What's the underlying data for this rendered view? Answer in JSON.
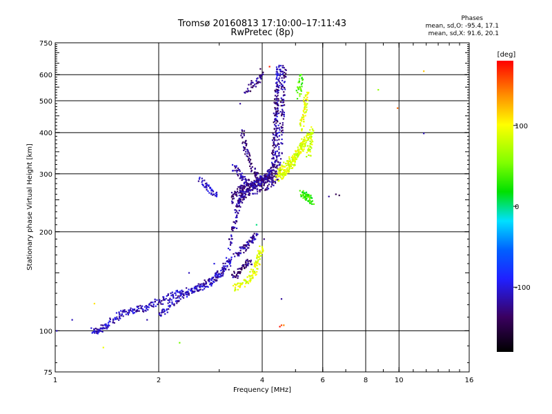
{
  "chart_data": {
    "type": "scatter",
    "title_line1": "Tromsø 20160813 17:10:00–17:11:43",
    "title_line2": "RwPretec (8p)",
    "phases_title": "Phases",
    "phases_o": "mean, sd,O:  -95.4, 17.1",
    "phases_x": "mean, sd,X:  91.6, 20.1",
    "xlabel": "Frequency [MHz]",
    "ylabel": "Stationary phase Virtual Height [km]",
    "x_scale": "log",
    "y_scale": "log",
    "xlim": [
      1,
      16
    ],
    "ylim": [
      75,
      750
    ],
    "x_ticks": [
      {
        "value": 1,
        "label": "1"
      },
      {
        "value": 2,
        "label": "2"
      },
      {
        "value": 4,
        "label": "4"
      },
      {
        "value": 6,
        "label": "6"
      },
      {
        "value": 8,
        "label": "8"
      },
      {
        "value": 10,
        "label": "10"
      },
      {
        "value": 16,
        "label": "16"
      }
    ],
    "x_grid": [
      2,
      4,
      6,
      8,
      10
    ],
    "y_ticks": [
      {
        "value": 75,
        "label": "75"
      },
      {
        "value": 100,
        "label": "100"
      },
      {
        "value": 200,
        "label": "200"
      },
      {
        "value": 300,
        "label": "300"
      },
      {
        "value": 400,
        "label": "400"
      },
      {
        "value": 500,
        "label": "500"
      },
      {
        "value": 600,
        "label": "600"
      },
      {
        "value": 750,
        "label": "750"
      }
    ],
    "y_grid": [
      100,
      200,
      300,
      400,
      500,
      600
    ],
    "grid": true,
    "colorbar": {
      "label": "[deg]",
      "range": [
        -180,
        180
      ],
      "ticks": [
        {
          "value": 100,
          "label": "100"
        },
        {
          "value": 0,
          "label": "0"
        },
        {
          "value": -100,
          "label": "-100"
        }
      ]
    },
    "traces": [
      {
        "phase": -110,
        "points": [
          [
            1.28,
            100
          ],
          [
            1.32,
            100
          ],
          [
            1.36,
            101
          ],
          [
            1.4,
            103
          ],
          [
            1.44,
            106
          ],
          [
            1.5,
            110
          ],
          [
            1.56,
            113
          ],
          [
            1.62,
            114
          ],
          [
            1.7,
            116
          ],
          [
            1.78,
            117
          ],
          [
            1.86,
            118
          ],
          [
            1.95,
            121
          ],
          [
            2.05,
            124
          ],
          [
            2.15,
            127
          ],
          [
            2.25,
            129
          ],
          [
            2.35,
            131
          ],
          [
            2.5,
            133
          ],
          [
            2.65,
            137
          ],
          [
            2.8,
            141
          ],
          [
            2.95,
            145
          ],
          [
            3.05,
            150
          ],
          [
            3.15,
            156
          ],
          [
            3.25,
            165
          ]
        ]
      },
      {
        "phase": -110,
        "points": [
          [
            2.0,
            112
          ],
          [
            2.1,
            116
          ],
          [
            2.2,
            121
          ],
          [
            2.3,
            126
          ],
          [
            2.45,
            130
          ],
          [
            2.6,
            134
          ],
          [
            2.75,
            138
          ],
          [
            2.9,
            144
          ],
          [
            3.05,
            152
          ],
          [
            3.2,
            165
          ]
        ]
      },
      {
        "phase": -120,
        "points": [
          [
            3.2,
            180
          ],
          [
            3.3,
            200
          ],
          [
            3.35,
            220
          ],
          [
            3.4,
            240
          ],
          [
            3.45,
            255
          ],
          [
            3.5,
            265
          ],
          [
            3.6,
            272
          ],
          [
            3.75,
            276
          ],
          [
            3.9,
            281
          ],
          [
            4.05,
            288
          ],
          [
            4.2,
            297
          ]
        ]
      },
      {
        "phase": -130,
        "points": [
          [
            3.25,
            250
          ],
          [
            3.35,
            262
          ],
          [
            3.45,
            270
          ],
          [
            3.55,
            275
          ],
          [
            3.7,
            278
          ],
          [
            3.9,
            282
          ],
          [
            4.1,
            290
          ],
          [
            4.3,
            300
          ],
          [
            4.4,
            315
          ]
        ]
      },
      {
        "phase": -125,
        "points": [
          [
            3.4,
            240
          ],
          [
            3.5,
            252
          ],
          [
            3.6,
            260
          ],
          [
            3.75,
            266
          ],
          [
            3.9,
            270
          ],
          [
            4.1,
            275
          ],
          [
            4.3,
            283
          ],
          [
            4.5,
            295
          ]
        ]
      },
      {
        "phase": -130,
        "points": [
          [
            3.5,
            400
          ],
          [
            3.55,
            370
          ],
          [
            3.6,
            345
          ],
          [
            3.7,
            320
          ],
          [
            3.8,
            300
          ],
          [
            3.9,
            290
          ],
          [
            4.0,
            286
          ],
          [
            4.1,
            290
          ],
          [
            4.2,
            300
          ]
        ]
      },
      {
        "phase": -115,
        "points": [
          [
            3.3,
            315
          ],
          [
            3.4,
            300
          ],
          [
            3.5,
            290
          ],
          [
            3.6,
            283
          ],
          [
            3.75,
            280
          ],
          [
            3.9,
            283
          ],
          [
            4.05,
            290
          ],
          [
            4.2,
            305
          ],
          [
            4.35,
            320
          ]
        ]
      },
      {
        "phase": -110,
        "points": [
          [
            4.35,
            330
          ],
          [
            4.38,
            370
          ],
          [
            4.4,
            420
          ],
          [
            4.42,
            470
          ],
          [
            4.44,
            520
          ],
          [
            4.45,
            570
          ],
          [
            4.46,
            610
          ],
          [
            4.48,
            640
          ]
        ]
      },
      {
        "phase": -120,
        "points": [
          [
            4.45,
            300
          ],
          [
            4.5,
            340
          ],
          [
            4.53,
            390
          ],
          [
            4.56,
            440
          ],
          [
            4.58,
            490
          ],
          [
            4.6,
            540
          ],
          [
            4.62,
            590
          ],
          [
            4.63,
            630
          ]
        ]
      },
      {
        "phase": -130,
        "points": [
          [
            4.25,
            280
          ],
          [
            4.3,
            320
          ],
          [
            4.33,
            360
          ],
          [
            4.35,
            400
          ],
          [
            4.38,
            450
          ],
          [
            4.4,
            500
          ],
          [
            4.42,
            560
          ]
        ]
      },
      {
        "phase": -125,
        "points": [
          [
            3.6,
            540
          ],
          [
            3.75,
            560
          ],
          [
            3.9,
            580
          ],
          [
            4.0,
            600
          ]
        ]
      },
      {
        "phase": -120,
        "points": [
          [
            3.35,
            170
          ],
          [
            3.45,
            175
          ],
          [
            3.55,
            180
          ],
          [
            3.65,
            185
          ],
          [
            3.75,
            190
          ],
          [
            3.85,
            195
          ]
        ]
      },
      {
        "phase": -130,
        "points": [
          [
            3.3,
            145
          ],
          [
            3.4,
            150
          ],
          [
            3.5,
            155
          ],
          [
            3.6,
            160
          ],
          [
            3.7,
            162
          ]
        ]
      },
      {
        "phase": -105,
        "points": [
          [
            2.65,
            290
          ],
          [
            2.75,
            275
          ],
          [
            2.85,
            265
          ],
          [
            2.95,
            260
          ]
        ]
      },
      {
        "phase": 90,
        "points": [
          [
            3.3,
            135
          ],
          [
            3.45,
            138
          ],
          [
            3.6,
            142
          ],
          [
            3.7,
            146
          ],
          [
            3.8,
            152
          ],
          [
            3.85,
            158
          ],
          [
            3.9,
            165
          ],
          [
            3.95,
            172
          ],
          [
            4.0,
            180
          ]
        ]
      },
      {
        "phase": 85,
        "points": [
          [
            4.4,
            290
          ],
          [
            4.5,
            296
          ],
          [
            4.6,
            300
          ],
          [
            4.7,
            305
          ],
          [
            4.8,
            312
          ],
          [
            4.9,
            322
          ],
          [
            5.0,
            335
          ],
          [
            5.1,
            348
          ],
          [
            5.2,
            360
          ],
          [
            5.3,
            372
          ],
          [
            5.4,
            385
          ],
          [
            5.5,
            395
          ]
        ]
      },
      {
        "phase": 90,
        "points": [
          [
            4.5,
            310
          ],
          [
            4.65,
            318
          ],
          [
            4.8,
            326
          ],
          [
            4.95,
            336
          ],
          [
            5.1,
            348
          ],
          [
            5.2,
            362
          ],
          [
            5.3,
            376
          ]
        ]
      },
      {
        "phase": 95,
        "points": [
          [
            5.2,
            410
          ],
          [
            5.25,
            440
          ],
          [
            5.3,
            470
          ],
          [
            5.35,
            500
          ],
          [
            5.4,
            530
          ]
        ]
      },
      {
        "phase": 80,
        "points": [
          [
            5.45,
            340
          ],
          [
            5.5,
            360
          ],
          [
            5.55,
            385
          ],
          [
            5.6,
            410
          ]
        ]
      },
      {
        "phase": 30,
        "points": [
          [
            5.2,
            262
          ],
          [
            5.3,
            258
          ],
          [
            5.4,
            255
          ],
          [
            5.5,
            252
          ],
          [
            5.6,
            248
          ]
        ]
      },
      {
        "phase": 40,
        "points": [
          [
            5.1,
            520
          ],
          [
            5.15,
            560
          ],
          [
            5.2,
            600
          ]
        ]
      }
    ],
    "isolated_points": [
      {
        "x": 1.01,
        "y": 100,
        "phase": -110
      },
      {
        "x": 1.12,
        "y": 108,
        "phase": -110
      },
      {
        "x": 1.3,
        "y": 121,
        "phase": 110
      },
      {
        "x": 1.38,
        "y": 89,
        "phase": 95
      },
      {
        "x": 2.3,
        "y": 92,
        "phase": 50
      },
      {
        "x": 4.5,
        "y": 103,
        "phase": 175
      },
      {
        "x": 4.55,
        "y": 104,
        "phase": 160
      },
      {
        "x": 4.62,
        "y": 104,
        "phase": 140
      },
      {
        "x": 6.55,
        "y": 260,
        "phase": -140
      },
      {
        "x": 6.7,
        "y": 258,
        "phase": -150
      },
      {
        "x": 6.25,
        "y": 256,
        "phase": -120
      },
      {
        "x": 8.7,
        "y": 540,
        "phase": 60
      },
      {
        "x": 9.9,
        "y": 475,
        "phase": 150
      },
      {
        "x": 11.8,
        "y": 615,
        "phase": 120
      },
      {
        "x": 11.8,
        "y": 398,
        "phase": -110
      },
      {
        "x": 4.2,
        "y": 635,
        "phase": 170
      },
      {
        "x": 3.95,
        "y": 625,
        "phase": -140
      },
      {
        "x": 1.85,
        "y": 108,
        "phase": -115
      },
      {
        "x": 2.45,
        "y": 150,
        "phase": -110
      },
      {
        "x": 2.9,
        "y": 160,
        "phase": -100
      },
      {
        "x": 3.45,
        "y": 490,
        "phase": -120
      },
      {
        "x": 3.85,
        "y": 210,
        "phase": 0
      },
      {
        "x": 4.05,
        "y": 190,
        "phase": -130
      },
      {
        "x": 4.55,
        "y": 125,
        "phase": -120
      }
    ]
  }
}
